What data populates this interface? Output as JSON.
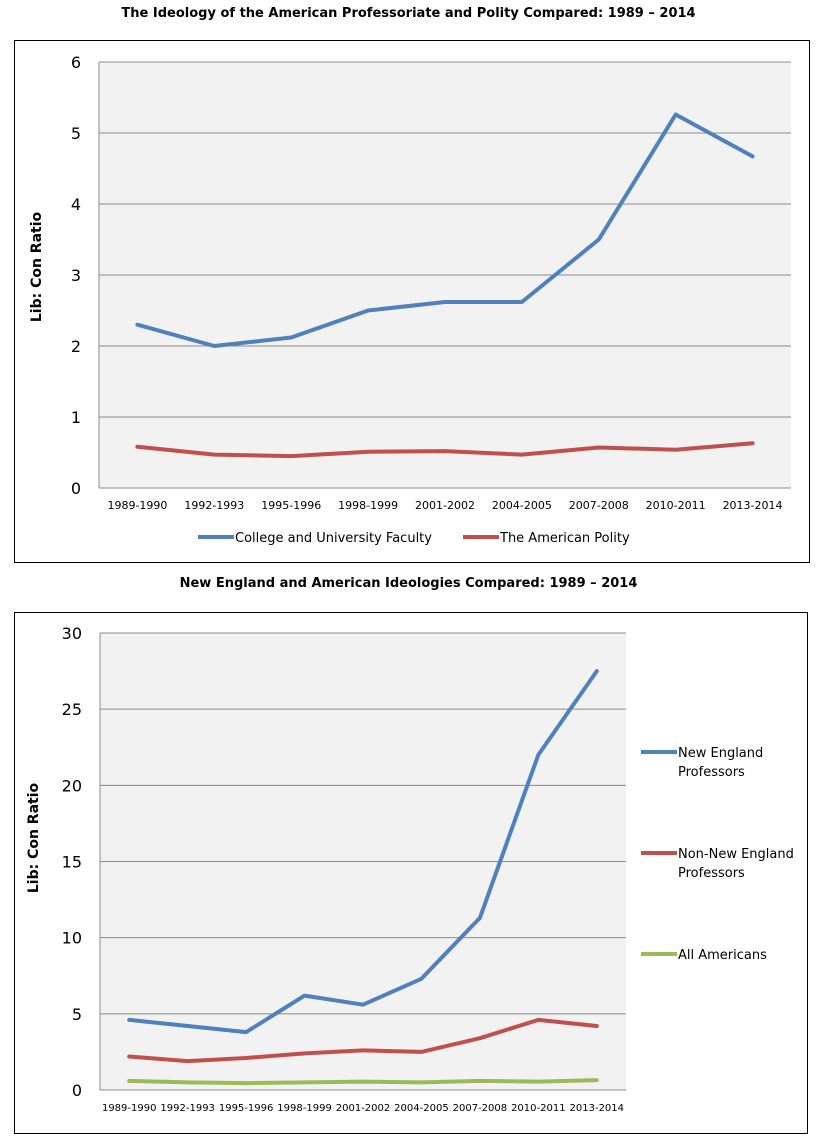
{
  "chart_data": [
    {
      "type": "line",
      "title": "The Ideology of the American Professoriate and Polity Compared: 1989 – 2014",
      "xlabel": "",
      "ylabel": "Lib: Con Ratio",
      "ylim": [
        0,
        6
      ],
      "yticks": [
        0,
        1,
        2,
        3,
        4,
        5,
        6
      ],
      "grid": true,
      "legend_position": "bottom",
      "categories": [
        "1989-1990",
        "1992-1993",
        "1995-1996",
        "1998-1999",
        "2001-2002",
        "2004-2005",
        "2007-2008",
        "2010-2011",
        "2013-2014"
      ],
      "series": [
        {
          "name": "College and University Faculty",
          "color": "#4F81BD",
          "values": [
            2.3,
            2.0,
            2.12,
            2.5,
            2.62,
            2.62,
            3.5,
            5.26,
            4.67
          ]
        },
        {
          "name": "The American Polity",
          "color": "#C0504D",
          "values": [
            0.58,
            0.47,
            0.45,
            0.51,
            0.52,
            0.47,
            0.57,
            0.54,
            0.63
          ]
        }
      ]
    },
    {
      "type": "line",
      "title": "New England and American Ideologies Compared: 1989 – 2014",
      "xlabel": "",
      "ylabel": "Lib: Con Ratio",
      "ylim": [
        0,
        30
      ],
      "yticks": [
        0,
        5,
        10,
        15,
        20,
        25,
        30
      ],
      "grid": true,
      "legend_position": "right",
      "categories": [
        "1989-1990",
        "1992-1993",
        "1995-1996",
        "1998-1999",
        "2001-2002",
        "2004-2005",
        "2007-2008",
        "2010-2011",
        "2013-2014"
      ],
      "series": [
        {
          "name": "New England Professors",
          "color": "#4F81BD",
          "values": [
            4.6,
            4.2,
            3.8,
            6.2,
            5.6,
            7.3,
            11.3,
            22.0,
            27.5
          ]
        },
        {
          "name": "Non-New England Professors",
          "color": "#C0504D",
          "values": [
            2.2,
            1.9,
            2.1,
            2.4,
            2.6,
            2.5,
            3.4,
            4.6,
            4.2
          ]
        },
        {
          "name": "All Americans",
          "color": "#9BBB59",
          "values": [
            0.6,
            0.5,
            0.45,
            0.5,
            0.55,
            0.5,
            0.6,
            0.55,
            0.65
          ]
        }
      ]
    }
  ]
}
